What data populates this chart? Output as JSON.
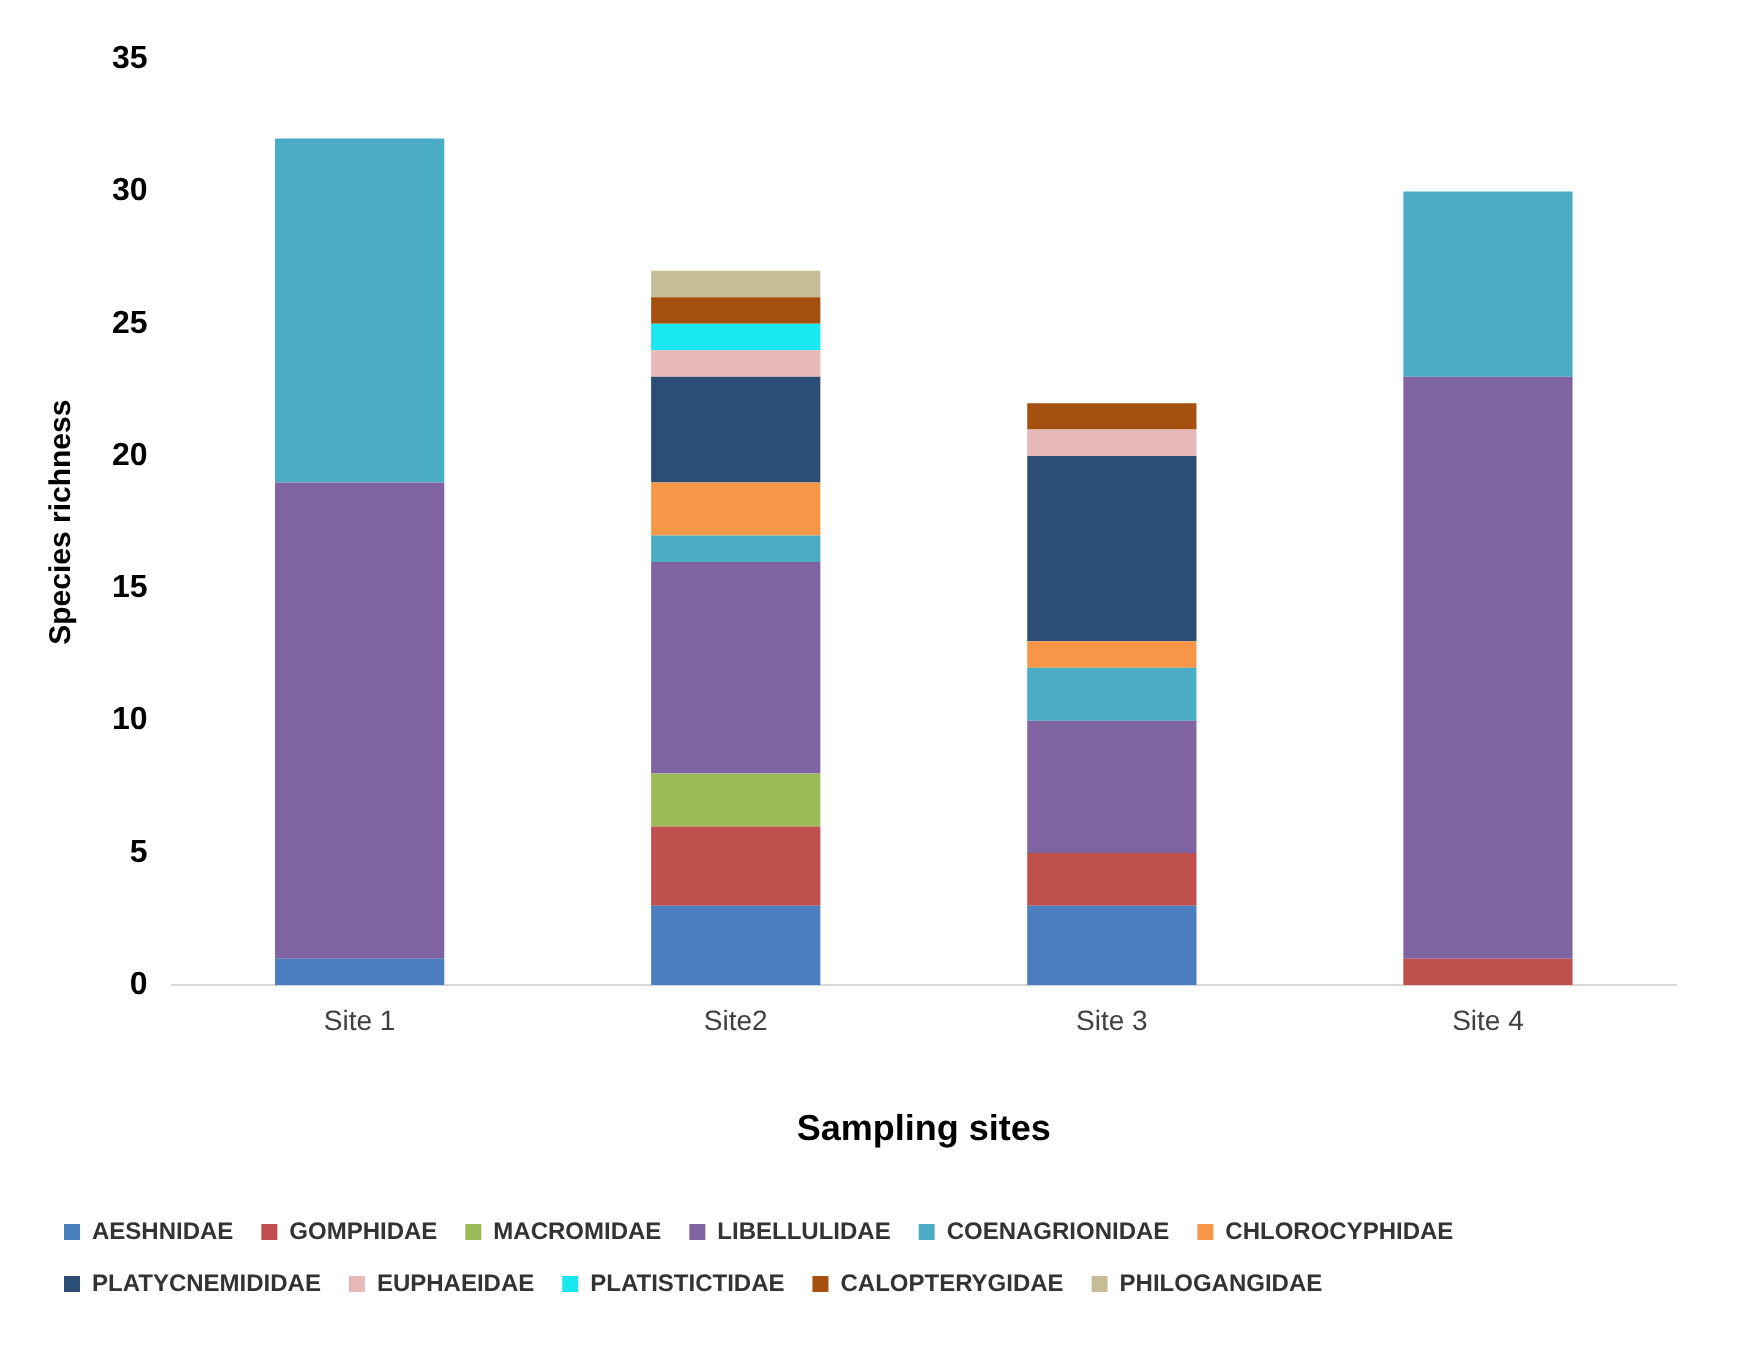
{
  "chart_data": {
    "type": "bar",
    "stacked": true,
    "xlabel": "Sampling sites",
    "ylabel": "Species richness",
    "categories": [
      "Site 1",
      "Site2",
      "Site 3",
      "Site 4"
    ],
    "series": [
      {
        "name": "AESHNIDAE",
        "color": "#4a7ebf",
        "values": [
          1,
          3,
          3,
          0
        ]
      },
      {
        "name": "GOMPHIDAE",
        "color": "#c0504d",
        "values": [
          0,
          3,
          2,
          1
        ]
      },
      {
        "name": "MACROMIDAE",
        "color": "#9bbb59",
        "values": [
          0,
          2,
          0,
          0
        ]
      },
      {
        "name": "LIBELLULIDAE",
        "color": "#8064a2",
        "values": [
          18,
          8,
          5,
          22
        ]
      },
      {
        "name": "COENAGRIONIDAE",
        "color": "#4bacc6",
        "values": [
          13,
          1,
          2,
          7
        ]
      },
      {
        "name": "CHLOROCYPHIDAE",
        "color": "#f79646",
        "values": [
          0,
          2,
          1,
          0
        ]
      },
      {
        "name": "PLATYCNEMIDIDAE",
        "color": "#2c4d75",
        "values": [
          0,
          4,
          7,
          0
        ]
      },
      {
        "name": "EUPHAEIDAE",
        "color": "#e6b9b8",
        "values": [
          0,
          1,
          1,
          0
        ]
      },
      {
        "name": "PLATISTICTIDAE",
        "color": "#1ae8f0",
        "values": [
          0,
          1,
          0,
          0
        ]
      },
      {
        "name": "CALOPTERYGIDAE",
        "color": "#a5500f",
        "values": [
          0,
          1,
          1,
          0
        ]
      },
      {
        "name": "PHILOGANGIDAE",
        "color": "#c4bd97",
        "values": [
          0,
          1,
          0,
          0
        ]
      }
    ],
    "ylim": [
      0,
      35
    ],
    "yticks": [
      0,
      5,
      10,
      15,
      20,
      25,
      30,
      35
    ],
    "grid": false,
    "legend": "bottom"
  }
}
